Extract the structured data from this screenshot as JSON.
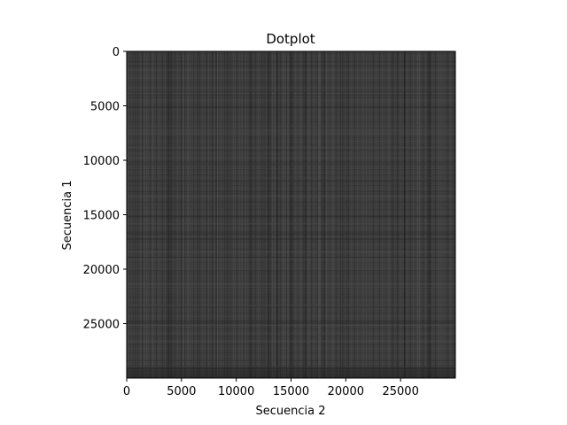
{
  "chart_data": {
    "type": "heatmap",
    "title": "Dotplot",
    "xlabel": "Secuencia 2",
    "ylabel": "Secuencia 1",
    "xlim": [
      0,
      30000
    ],
    "ylim": [
      30000,
      0
    ],
    "x_ticks": [
      0,
      5000,
      10000,
      15000,
      20000,
      25000
    ],
    "y_ticks": [
      0,
      5000,
      10000,
      15000,
      20000,
      25000
    ],
    "colormap": "grayscale",
    "base_color": "#3c3c3c",
    "grid": false,
    "legend": "none"
  }
}
